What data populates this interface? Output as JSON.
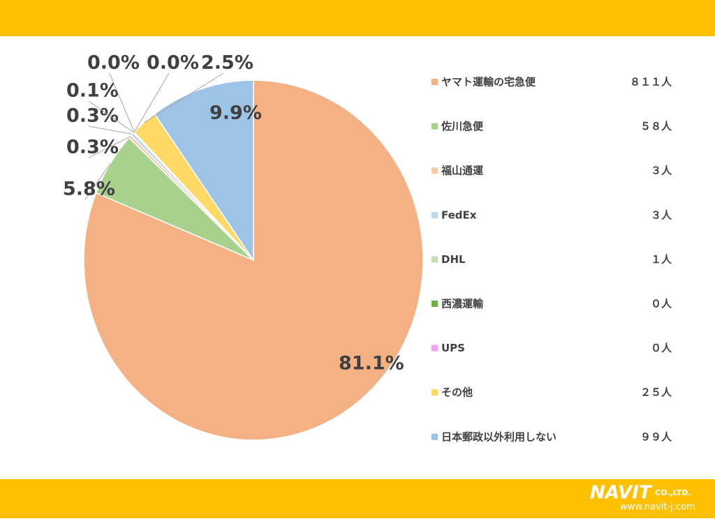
{
  "chart_data": {
    "type": "pie",
    "categories": [
      "ヤマト運輸の宅急便",
      "佐川急便",
      "福山通運",
      "FedEx",
      "DHL",
      "西濃運輸",
      "UPS",
      "その他",
      "日本郵政以外利用しない"
    ],
    "values": [
      81.1,
      5.8,
      0.3,
      0.3,
      0.1,
      0.0,
      0.0,
      2.5,
      9.9
    ],
    "value_labels": [
      "81.1%",
      "5.8%",
      "0.3%",
      "0.3%",
      "0.1%",
      "0.0%",
      "0.0%",
      "2.5%",
      "9.9%"
    ],
    "colors": [
      "#f4b183",
      "#a9d18e",
      "#f8cbad",
      "#bdd7ee",
      "#c5e0b4",
      "#70ad47",
      "#f4a0f0",
      "#ffd966",
      "#9dc3e6"
    ],
    "counts": [
      811,
      58,
      3,
      3,
      1,
      0,
      0,
      25,
      99
    ],
    "count_labels": [
      "８１１人",
      "５８人",
      "３人",
      "３人",
      "１人",
      "０人",
      "０人",
      "２５人",
      "９９人"
    ],
    "legend": "right"
  },
  "logo": {
    "name": "NAVIT",
    "suffix": "CO.,LTD.",
    "url": "www.navit-j.com"
  }
}
